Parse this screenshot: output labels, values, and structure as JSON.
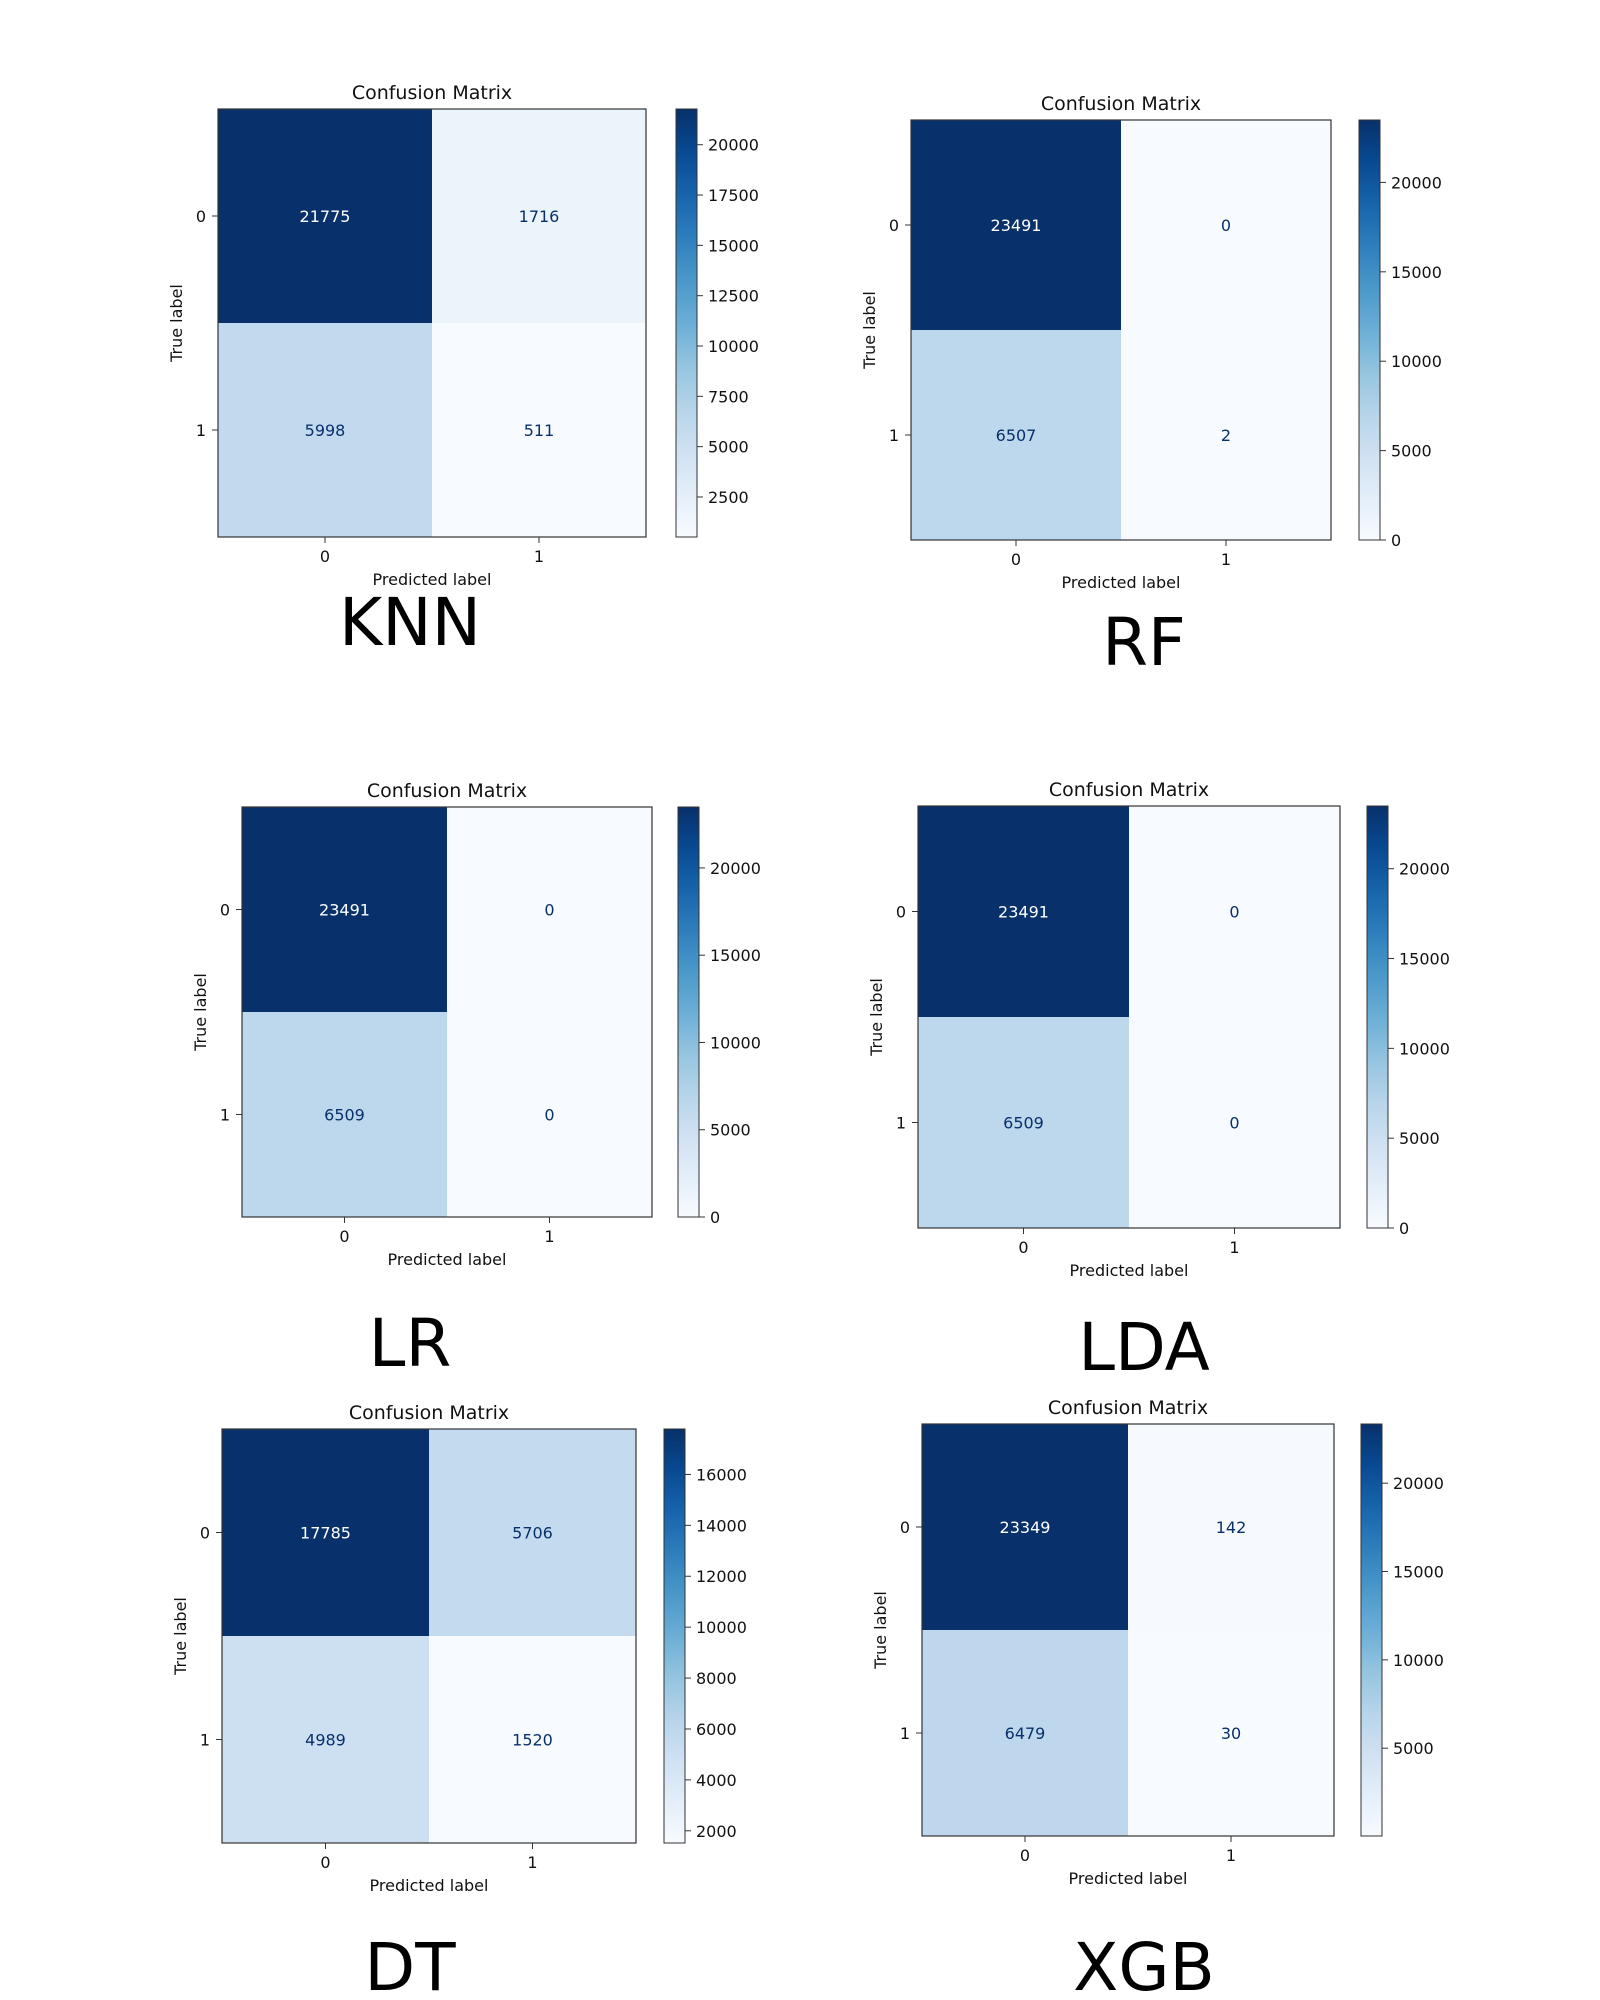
{
  "colors": {
    "dark": "#08306b",
    "light": "#f7fbff",
    "text_dark": "#ffffff",
    "text_light": "#08306b"
  },
  "chart_data": [
    {
      "type": "heatmap",
      "model": "KNN",
      "title": "Confusion Matrix",
      "xlabel": "Predicted label",
      "ylabel": "True label",
      "x_ticks": [
        "0",
        "1"
      ],
      "y_ticks": [
        "0",
        "1"
      ],
      "matrix": [
        [
          21775,
          1716
        ],
        [
          5998,
          511
        ]
      ],
      "colorbar": {
        "min": 511,
        "max": 21775,
        "ticks": [
          2500,
          5000,
          7500,
          10000,
          12500,
          15000,
          17500,
          20000
        ]
      }
    },
    {
      "type": "heatmap",
      "model": "RF",
      "title": "Confusion Matrix",
      "xlabel": "Predicted label",
      "ylabel": "True label",
      "x_ticks": [
        "0",
        "1"
      ],
      "y_ticks": [
        "0",
        "1"
      ],
      "matrix": [
        [
          23491,
          0
        ],
        [
          6507,
          2
        ]
      ],
      "colorbar": {
        "min": 0,
        "max": 23491,
        "ticks": [
          0,
          5000,
          10000,
          15000,
          20000
        ]
      }
    },
    {
      "type": "heatmap",
      "model": "LR",
      "title": "Confusion Matrix",
      "xlabel": "Predicted label",
      "ylabel": "True label",
      "x_ticks": [
        "0",
        "1"
      ],
      "y_ticks": [
        "0",
        "1"
      ],
      "matrix": [
        [
          23491,
          0
        ],
        [
          6509,
          0
        ]
      ],
      "colorbar": {
        "min": 0,
        "max": 23491,
        "ticks": [
          0,
          5000,
          10000,
          15000,
          20000
        ]
      }
    },
    {
      "type": "heatmap",
      "model": "LDA",
      "title": "Confusion Matrix",
      "xlabel": "Predicted label",
      "ylabel": "True label",
      "x_ticks": [
        "0",
        "1"
      ],
      "y_ticks": [
        "0",
        "1"
      ],
      "matrix": [
        [
          23491,
          0
        ],
        [
          6509,
          0
        ]
      ],
      "colorbar": {
        "min": 0,
        "max": 23491,
        "ticks": [
          0,
          5000,
          10000,
          15000,
          20000
        ]
      }
    },
    {
      "type": "heatmap",
      "model": "DT",
      "title": "Confusion Matrix",
      "xlabel": "Predicted label",
      "ylabel": "True label",
      "x_ticks": [
        "0",
        "1"
      ],
      "y_ticks": [
        "0",
        "1"
      ],
      "matrix": [
        [
          17785,
          5706
        ],
        [
          4989,
          1520
        ]
      ],
      "colorbar": {
        "min": 1520,
        "max": 17785,
        "ticks": [
          2000,
          4000,
          6000,
          8000,
          10000,
          12000,
          14000,
          16000
        ]
      }
    },
    {
      "type": "heatmap",
      "model": "XGB",
      "title": "Confusion Matrix",
      "xlabel": "Predicted label",
      "ylabel": "True label",
      "x_ticks": [
        "0",
        "1"
      ],
      "y_ticks": [
        "0",
        "1"
      ],
      "matrix": [
        [
          23349,
          142
        ],
        [
          6479,
          30
        ]
      ],
      "colorbar": {
        "min": 30,
        "max": 23349,
        "ticks": [
          5000,
          10000,
          15000,
          20000
        ]
      }
    }
  ]
}
